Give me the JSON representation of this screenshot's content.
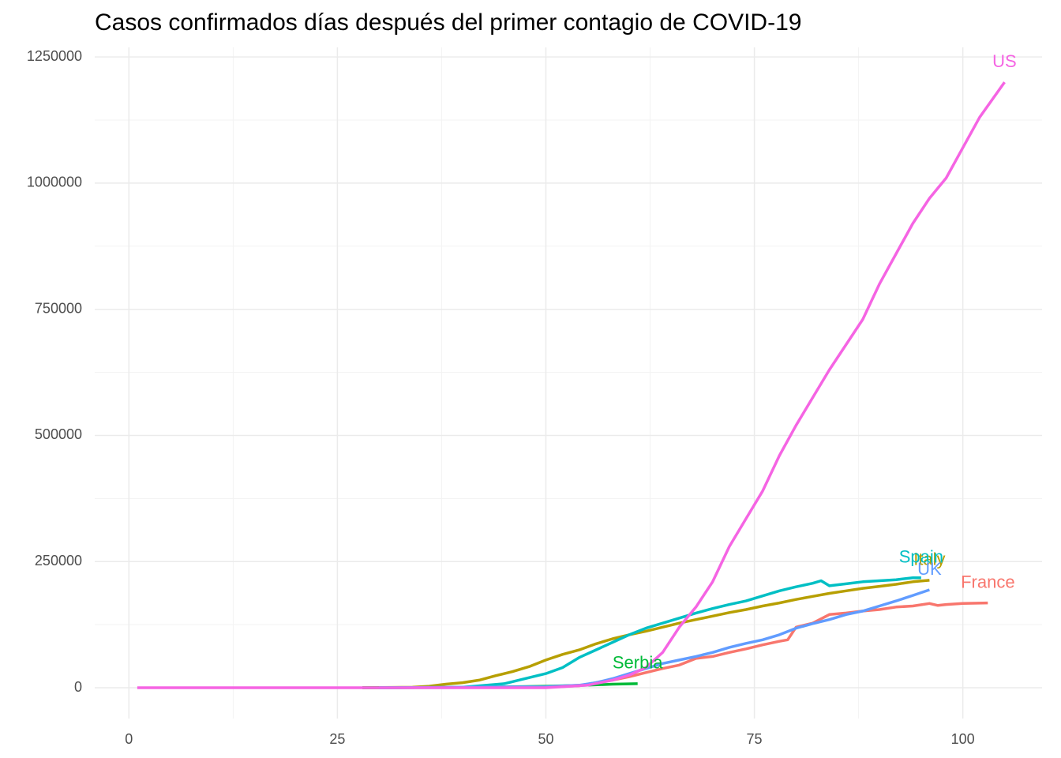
{
  "chart_data": {
    "type": "line",
    "title": "Casos confirmados días después del primer contagio de COVID-19",
    "xlim": [
      -4.1,
      109.5
    ],
    "ylim": [
      -61000,
      1269000
    ],
    "xticks": [
      0,
      25,
      50,
      75,
      100
    ],
    "yticks": [
      0,
      250000,
      500000,
      750000,
      1000000,
      1250000
    ],
    "grid": true,
    "series": [
      {
        "name": "France",
        "color": "#F8766D",
        "x": [
          28,
          50,
          54,
          56,
          58,
          60,
          62,
          64,
          66,
          68,
          70,
          72,
          74,
          76,
          78,
          79,
          80,
          82,
          84,
          86,
          88,
          90,
          92,
          94,
          96,
          97,
          98,
          100,
          103
        ],
        "values": [
          0,
          1000,
          4000,
          10000,
          15000,
          22000,
          30000,
          38000,
          45000,
          58000,
          62000,
          70000,
          77000,
          85000,
          92000,
          95000,
          120000,
          128000,
          145000,
          148000,
          152000,
          155000,
          160000,
          162000,
          167000,
          163000,
          165000,
          167000,
          168000
        ]
      },
      {
        "name": "Italy",
        "color": "#B79F00",
        "x": [
          28,
          34,
          36,
          38,
          40,
          42,
          44,
          46,
          48,
          50,
          52,
          54,
          56,
          58,
          60,
          62,
          64,
          66,
          68,
          70,
          72,
          74,
          76,
          78,
          80,
          82,
          84,
          86,
          88,
          90,
          92,
          94,
          96
        ],
        "values": [
          0,
          1000,
          3000,
          7000,
          10000,
          15000,
          24000,
          32000,
          42000,
          55000,
          66000,
          75000,
          87000,
          97000,
          105000,
          112000,
          120000,
          128000,
          135000,
          142000,
          149000,
          155000,
          162000,
          168000,
          175000,
          181000,
          187000,
          192000,
          197000,
          201000,
          205000,
          210000,
          213000
        ]
      },
      {
        "name": "Serbia",
        "color": "#00BA38",
        "x": [
          28,
          40,
          50,
          55,
          58,
          61
        ],
        "values": [
          0,
          500,
          3000,
          5000,
          7000,
          8000
        ]
      },
      {
        "name": "Spain",
        "color": "#00BFC4",
        "x": [
          30,
          40,
          45,
          48,
          50,
          52,
          54,
          56,
          58,
          60,
          62,
          64,
          66,
          68,
          70,
          72,
          74,
          76,
          78,
          80,
          82,
          83,
          84,
          86,
          88,
          90,
          92,
          94,
          95
        ],
        "values": [
          0,
          1000,
          8000,
          20000,
          28000,
          40000,
          60000,
          75000,
          90000,
          105000,
          118000,
          128000,
          138000,
          148000,
          157000,
          165000,
          172000,
          182000,
          192000,
          200000,
          207000,
          212000,
          202000,
          206000,
          210000,
          212000,
          214000,
          218000,
          218000
        ]
      },
      {
        "name": "UK",
        "color": "#619CFF",
        "x": [
          30,
          50,
          54,
          56,
          58,
          60,
          62,
          64,
          66,
          68,
          70,
          72,
          74,
          76,
          78,
          80,
          82,
          84,
          86,
          88,
          90,
          92,
          94,
          96
        ],
        "values": [
          0,
          2000,
          5000,
          10000,
          18000,
          28000,
          38000,
          48000,
          55000,
          62000,
          70000,
          80000,
          88000,
          95000,
          105000,
          118000,
          127000,
          135000,
          145000,
          152000,
          162000,
          172000,
          183000,
          194000
        ]
      },
      {
        "name": "US",
        "color": "#F564E3",
        "x": [
          1,
          50,
          55,
          58,
          60,
          62,
          64,
          66,
          68,
          70,
          72,
          74,
          76,
          78,
          80,
          82,
          84,
          86,
          88,
          90,
          92,
          94,
          96,
          98,
          100,
          102,
          105
        ],
        "values": [
          0,
          0,
          5000,
          15000,
          25000,
          40000,
          70000,
          120000,
          160000,
          210000,
          280000,
          335000,
          390000,
          460000,
          520000,
          575000,
          630000,
          680000,
          730000,
          800000,
          860000,
          920000,
          970000,
          1010000,
          1070000,
          1130000,
          1200000
        ]
      }
    ]
  }
}
